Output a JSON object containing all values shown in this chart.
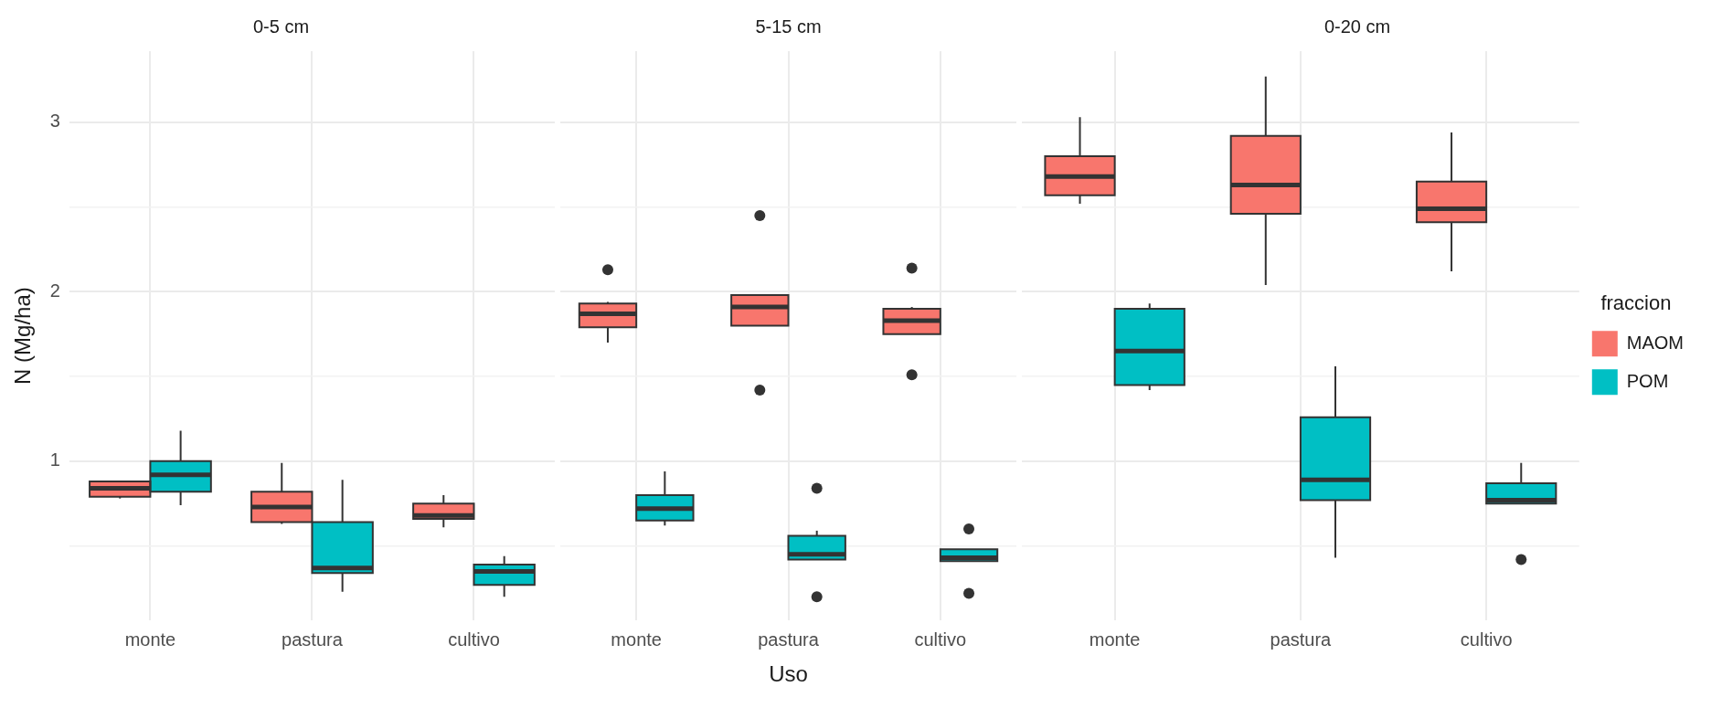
{
  "chart_data": [
    {
      "type": "box",
      "title": "0-5 cm",
      "ylabel": "N (Mg/ha)",
      "categories": [
        "monte",
        "pastura",
        "cultivo"
      ],
      "ylim": [
        0.06,
        3.42
      ],
      "yticks": [
        {
          "value": 0.5,
          "label": null
        },
        1,
        {
          "value": 1.5,
          "label": null
        },
        2,
        {
          "value": 2.5,
          "label": null
        },
        3
      ],
      "grid": true,
      "legend": false,
      "series": [
        {
          "color": "#f8766d",
          "boxes": [
            {
              "low": 0.78,
              "q1": 0.79,
              "median": 0.84,
              "q3": 0.88,
              "high": 0.88
            },
            {
              "low": 0.63,
              "q1": 0.64,
              "median": 0.73,
              "q3": 0.82,
              "high": 0.99
            },
            {
              "low": 0.61,
              "q1": 0.66,
              "median": 0.68,
              "q3": 0.75,
              "high": 0.8
            }
          ]
        },
        {
          "color": "#00bfc4",
          "boxes": [
            {
              "low": 0.74,
              "q1": 0.82,
              "median": 0.92,
              "q3": 1.0,
              "high": 1.18
            },
            {
              "low": 0.23,
              "q1": 0.34,
              "median": 0.37,
              "q3": 0.64,
              "high": 0.89
            },
            {
              "low": 0.2,
              "q1": 0.27,
              "median": 0.35,
              "q3": 0.39,
              "high": 0.44
            }
          ]
        }
      ]
    },
    {
      "type": "box",
      "title": "5-15 cm",
      "xlabel": "Uso",
      "categories": [
        "monte",
        "pastura",
        "cultivo"
      ],
      "ylim": [
        0.06,
        3.42
      ],
      "yticks": [
        {
          "value": 0.5,
          "label": null
        },
        1,
        {
          "value": 1.5,
          "label": null
        },
        2,
        {
          "value": 2.5,
          "label": null
        },
        3
      ],
      "grid": true,
      "legend": false,
      "tick_labels": "x",
      "series": [
        {
          "color": "#f8766d",
          "boxes": [
            {
              "low": 1.7,
              "q1": 1.79,
              "median": 1.87,
              "q3": 1.93,
              "high": 1.94,
              "outliers": [
                2.13
              ]
            },
            {
              "low": 1.8,
              "q1": 1.8,
              "median": 1.91,
              "q3": 1.98,
              "high": 1.98,
              "outliers": [
                2.45,
                1.42
              ]
            },
            {
              "low": 1.75,
              "q1": 1.75,
              "median": 1.83,
              "q3": 1.9,
              "high": 1.91,
              "outliers": [
                2.14,
                1.51
              ]
            }
          ]
        },
        {
          "color": "#00bfc4",
          "boxes": [
            {
              "low": 0.62,
              "q1": 0.65,
              "median": 0.72,
              "q3": 0.8,
              "high": 0.94
            },
            {
              "low": 0.42,
              "q1": 0.42,
              "median": 0.45,
              "q3": 0.56,
              "high": 0.59,
              "outliers": [
                0.84,
                0.2
              ]
            },
            {
              "low": 0.41,
              "q1": 0.41,
              "median": 0.43,
              "q3": 0.48,
              "high": 0.48,
              "outliers": [
                0.6,
                0.22
              ]
            }
          ]
        }
      ]
    },
    {
      "type": "box",
      "title": "0-20 cm",
      "categories": [
        "monte",
        "pastura",
        "cultivo"
      ],
      "ylim": [
        0.06,
        3.42
      ],
      "yticks": [
        {
          "value": 0.5,
          "label": null
        },
        1,
        {
          "value": 1.5,
          "label": null
        },
        2,
        {
          "value": 2.5,
          "label": null
        },
        3
      ],
      "grid": true,
      "legend": "right",
      "legend_title": "fraccion",
      "tick_labels": "x",
      "series": [
        {
          "name": "MAOM",
          "color": "#f8766d",
          "boxes": [
            {
              "low": 2.52,
              "q1": 2.57,
              "median": 2.68,
              "q3": 2.8,
              "high": 3.03
            },
            {
              "low": 2.04,
              "q1": 2.46,
              "median": 2.63,
              "q3": 2.92,
              "high": 3.27
            },
            {
              "low": 2.12,
              "q1": 2.41,
              "median": 2.49,
              "q3": 2.65,
              "high": 2.94
            }
          ]
        },
        {
          "name": "POM",
          "color": "#00bfc4",
          "boxes": [
            {
              "low": 1.42,
              "q1": 1.45,
              "median": 1.65,
              "q3": 1.9,
              "high": 1.93
            },
            {
              "low": 0.43,
              "q1": 0.77,
              "median": 0.89,
              "q3": 1.26,
              "high": 1.56
            },
            {
              "low": 0.75,
              "q1": 0.75,
              "median": 0.77,
              "q3": 0.87,
              "high": 0.99,
              "outliers": [
                0.42
              ]
            }
          ]
        }
      ]
    }
  ]
}
